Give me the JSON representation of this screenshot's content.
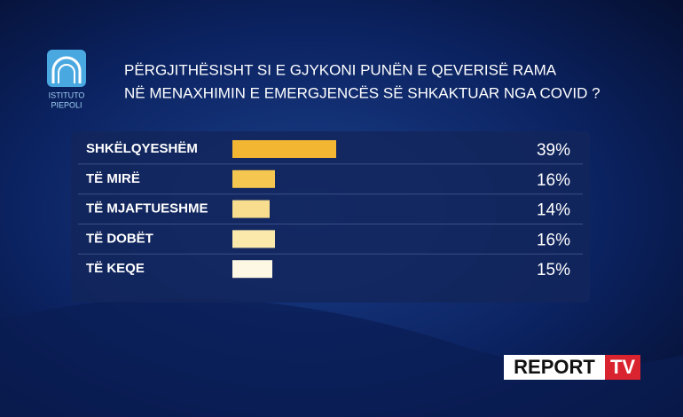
{
  "chart_data": {
    "type": "hbar",
    "title": [
      "PËRGJITHËSISHT SI E GJYKONI PUNËN E QEVERISË RAMA",
      "NË MENAXHIMIN E EMERGJENCËS SË SHKAKTUAR NGA COVID ?"
    ],
    "categories": [
      "SHKËLQYESHËM",
      "TË MIRË",
      "TË MJAFTUESHME",
      "TË DOBËT",
      "TË KEQE"
    ],
    "values": [
      39,
      16,
      14,
      16,
      15
    ],
    "value_labels": [
      "39%",
      "16%",
      "14%",
      "16%",
      "15%"
    ],
    "colors": [
      "#f2b632",
      "#f6c750",
      "#f9dd8e",
      "#fbe8ab",
      "#fdf8e4"
    ]
  },
  "branding": {
    "institute": [
      "ISTITUTO",
      "PIEPOLI"
    ],
    "channel": [
      "REPORT",
      "TV"
    ]
  }
}
